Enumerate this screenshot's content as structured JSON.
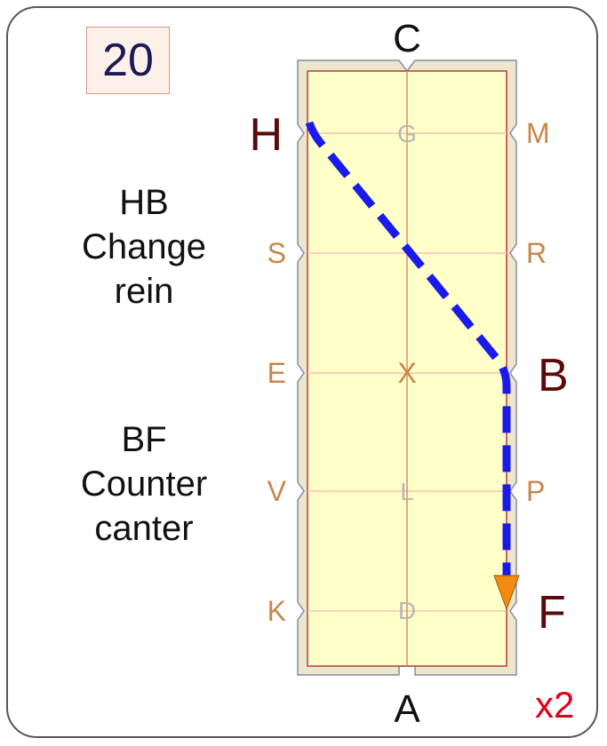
{
  "test_number": "20",
  "repeat_label": "x2",
  "instructions": [
    {
      "lines": [
        "HB",
        "Change",
        "rein"
      ]
    },
    {
      "lines": [
        "BF",
        "Counter",
        "canter"
      ]
    }
  ],
  "arena": {
    "end_letters": {
      "top": "C",
      "bottom": "A"
    },
    "left_letters": [
      "H",
      "S",
      "E",
      "V",
      "K"
    ],
    "right_letters": [
      "M",
      "R",
      "B",
      "P",
      "F"
    ],
    "centerline_letters": [
      "G",
      "X",
      "L",
      "D"
    ],
    "highlighted_letters": [
      "H",
      "B",
      "F"
    ]
  },
  "route": {
    "path": [
      "H",
      "B",
      "F"
    ],
    "line_color": "#1a1aee",
    "arrow_color": "#f58a10"
  },
  "colors": {
    "arena_fill": "#ffffc8",
    "arena_border": "#c0393b",
    "arena_margin": "#ebe6cc",
    "highlight_letter": "#5a0a0a",
    "side_letter": "#c8874a",
    "centerline_letter": "#b8b8b8"
  }
}
